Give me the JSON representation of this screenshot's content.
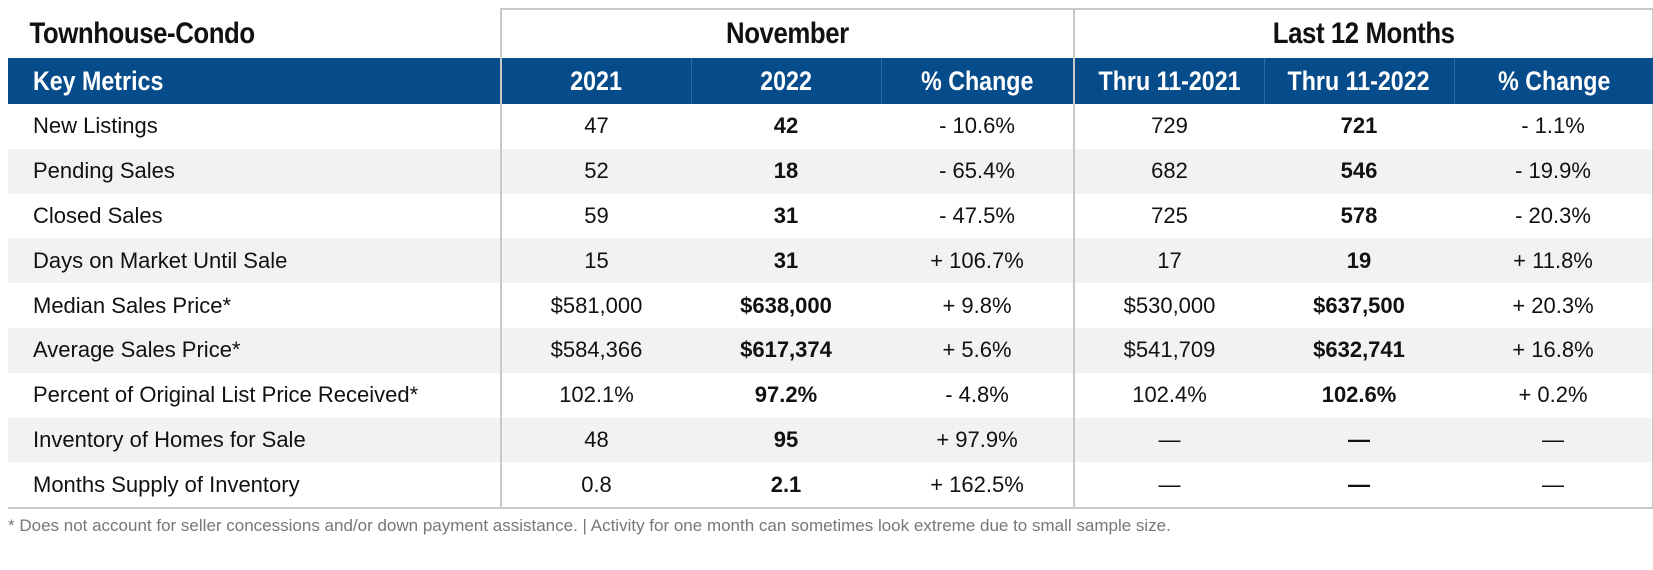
{
  "title": "Townhouse-Condo",
  "groups": {
    "month": "November",
    "year": "Last 12 Months"
  },
  "headers": {
    "metric": "Key Metrics",
    "month_prev": "2021",
    "month_curr": "2022",
    "month_change": "% Change",
    "year_prev": "Thru 11-2021",
    "year_curr": "Thru 11-2022",
    "year_change": "% Change"
  },
  "rows": [
    {
      "metric": "New Listings",
      "m_prev": "47",
      "m_curr": "42",
      "m_change": "- 10.6%",
      "y_prev": "729",
      "y_curr": "721",
      "y_change": "- 1.1%"
    },
    {
      "metric": "Pending Sales",
      "m_prev": "52",
      "m_curr": "18",
      "m_change": "- 65.4%",
      "y_prev": "682",
      "y_curr": "546",
      "y_change": "- 19.9%"
    },
    {
      "metric": "Closed Sales",
      "m_prev": "59",
      "m_curr": "31",
      "m_change": "- 47.5%",
      "y_prev": "725",
      "y_curr": "578",
      "y_change": "- 20.3%"
    },
    {
      "metric": "Days on Market Until Sale",
      "m_prev": "15",
      "m_curr": "31",
      "m_change": "+ 106.7%",
      "y_prev": "17",
      "y_curr": "19",
      "y_change": "+ 11.8%"
    },
    {
      "metric": "Median Sales Price*",
      "m_prev": "$581,000",
      "m_curr": "$638,000",
      "m_change": "+ 9.8%",
      "y_prev": "$530,000",
      "y_curr": "$637,500",
      "y_change": "+ 20.3%"
    },
    {
      "metric": "Average Sales Price*",
      "m_prev": "$584,366",
      "m_curr": "$617,374",
      "m_change": "+ 5.6%",
      "y_prev": "$541,709",
      "y_curr": "$632,741",
      "y_change": "+ 16.8%"
    },
    {
      "metric": "Percent of Original List Price Received*",
      "m_prev": "102.1%",
      "m_curr": "97.2%",
      "m_change": "- 4.8%",
      "y_prev": "102.4%",
      "y_curr": "102.6%",
      "y_change": "+ 0.2%"
    },
    {
      "metric": "Inventory of Homes for Sale",
      "m_prev": "48",
      "m_curr": "95",
      "m_change": "+ 97.9%",
      "y_prev": "—",
      "y_curr": "—",
      "y_change": "—"
    },
    {
      "metric": "Months Supply of Inventory",
      "m_prev": "0.8",
      "m_curr": "2.1",
      "m_change": "+ 162.5%",
      "y_prev": "—",
      "y_curr": "—",
      "y_change": "—"
    }
  ],
  "footnote": "* Does not account for seller concessions and/or down payment assistance. | Activity for one month can sometimes look extreme due to small sample size.",
  "colors": {
    "header_bg": "#064b8a",
    "alt_row_bg": "#f2f2f2",
    "border": "#c8c8c8"
  }
}
